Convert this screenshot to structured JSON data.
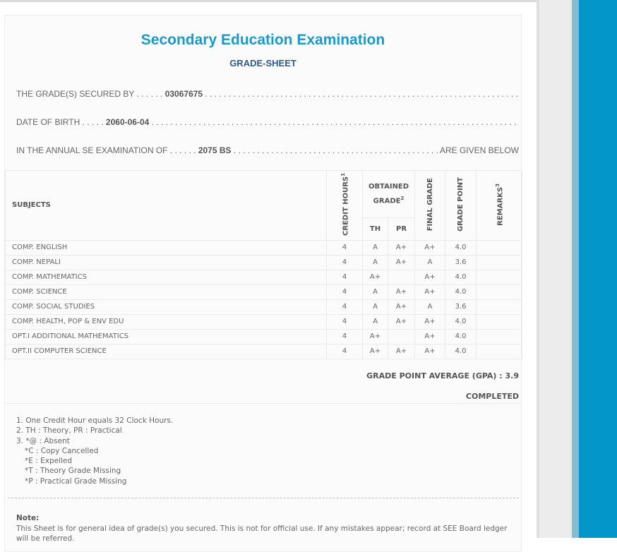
{
  "header": {
    "title": "Secondary Education Examination",
    "subtitle": "GRADE-SHEET"
  },
  "info": {
    "secured_label": "THE GRADE(S) SECURED BY",
    "symbol_no": "03067675",
    "dob_label": "DATE OF BIRTH",
    "dob": "2060-06-04",
    "exam_label": "IN THE ANNUAL SE EXAMINATION OF",
    "exam_year": "2075 BS",
    "exam_suffix": "ARE GIVEN BELOW"
  },
  "table": {
    "headers": {
      "subjects": "SUBJECTS",
      "credit": "CREDIT HOURS",
      "credit_sup": "1",
      "obtained": "OBTAINED GRADE",
      "obtained_sup": "2",
      "th": "TH",
      "pr": "PR",
      "final": "FINAL GRADE",
      "point": "GRADE POINT",
      "remarks": "REMARKS",
      "remarks_sup": "3"
    },
    "rows": [
      {
        "subject": "COMP. ENGLISH",
        "credit": "4",
        "th": "A",
        "pr": "A+",
        "final": "A+",
        "point": "4.0"
      },
      {
        "subject": "COMP. NEPALI",
        "credit": "4",
        "th": "A",
        "pr": "A+",
        "final": "A",
        "point": "3.6"
      },
      {
        "subject": "COMP. MATHEMATICS",
        "credit": "4",
        "th": "A+",
        "pr": "",
        "final": "A+",
        "point": "4.0"
      },
      {
        "subject": "COMP. SCIENCE",
        "credit": "4",
        "th": "A",
        "pr": "A+",
        "final": "A+",
        "point": "4.0"
      },
      {
        "subject": "COMP. SOCIAL STUDIES",
        "credit": "4",
        "th": "A",
        "pr": "A+",
        "final": "A",
        "point": "3.6"
      },
      {
        "subject": "COMP. HEALTH, POP & ENV EDU",
        "credit": "4",
        "th": "A",
        "pr": "A+",
        "final": "A+",
        "point": "4.0"
      },
      {
        "subject": "OPT.I ADDITIONAL MATHEMATICS",
        "credit": "4",
        "th": "A+",
        "pr": "",
        "final": "A+",
        "point": "4.0"
      },
      {
        "subject": "OPT.II COMPUTER SCIENCE",
        "credit": "4",
        "th": "A+",
        "pr": "A+",
        "final": "A+",
        "point": "4.0"
      }
    ]
  },
  "gpa": "GRADE POINT AVERAGE (GPA) : 3.9",
  "status": "COMPLETED",
  "footnotes": [
    "1. One Credit Hour equals 32 Clock Hours.",
    "2. TH : Theory, PR : Practical",
    "3. *@ : Absent",
    "*C : Copy Cancelled",
    "*E : Expelled",
    "*T : Theory Grade Missing",
    "*P : Practical Grade Missing"
  ],
  "note": {
    "label": "Note:",
    "text": "This Sheet is for general idea of grade(s) you secured. This is not for official use. If any mistakes appear; record at SEE Board ledger will be referred."
  }
}
